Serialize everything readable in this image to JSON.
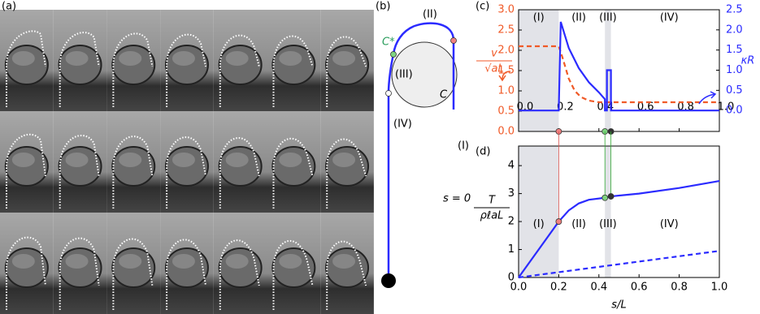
{
  "panel_labels": [
    "(a)",
    "(b)",
    "(c)",
    "(d)"
  ],
  "diagram": {
    "labels": [
      "(II)",
      "C*",
      "(III)",
      "C",
      "(I)",
      "(IV)",
      "s = 0"
    ]
  },
  "chart_data": [
    {
      "type": "line",
      "ylabel": "v",
      "ylabel_denominator": "√aL",
      "y2label": "κR",
      "xlim": [
        0,
        1
      ],
      "xticks": [
        {
          "value": 0,
          "label": "0.0"
        },
        {
          "value": 0.2,
          "label": "0.2"
        },
        {
          "value": 0.4,
          "label": "0.4"
        },
        {
          "value": 0.6,
          "label": "0.6"
        },
        {
          "value": 0.8,
          "label": "0.8"
        },
        {
          "value": 1,
          "label": "1.0"
        }
      ],
      "ylim": [
        0,
        3
      ],
      "yticks": [
        {
          "value": 0,
          "label": "0.0"
        },
        {
          "value": 0.5,
          "label": "0.5"
        },
        {
          "value": 1,
          "label": "1.0"
        },
        {
          "value": 1.5,
          "label": "1.5"
        },
        {
          "value": 2,
          "label": "2.0"
        },
        {
          "value": 2.5,
          "label": "2.5"
        },
        {
          "value": 3,
          "label": "3.0"
        }
      ],
      "y2lim": [
        -0.52,
        2.5
      ],
      "y2ticks": [
        {
          "value": 0,
          "label": "0.0"
        },
        {
          "value": 0.5,
          "label": "0.5"
        },
        {
          "value": 1,
          "label": "1.0"
        },
        {
          "value": 1.5,
          "label": "1.5"
        },
        {
          "value": 2,
          "label": "2.0"
        },
        {
          "value": 2.5,
          "label": "2.5"
        }
      ],
      "shaded": [
        [
          0,
          0.2
        ],
        [
          0.43,
          0.46
        ]
      ],
      "regions": [
        "(I)",
        "(II)",
        "(III)",
        "(IV)"
      ],
      "markers": {
        "x": [
          0.2,
          0.43,
          0.46
        ],
        "values": [
          0,
          0,
          0
        ],
        "colors": [
          "#f08080",
          "#7fd47f",
          "#333333"
        ]
      },
      "series": [
        {
          "color": "#f05a28",
          "dashed": true,
          "x": [
            0,
            0.2,
            0.22,
            0.25,
            0.28,
            0.31,
            0.35,
            0.4,
            1.0
          ],
          "values": [
            2.1,
            2.1,
            1.8,
            1.3,
            1.0,
            0.85,
            0.76,
            0.72,
            0.72
          ]
        },
        {
          "color": "#2b2bff",
          "dashed": false,
          "axis": "y2",
          "x": [
            0,
            0.2,
            0.21,
            0.25,
            0.3,
            0.35,
            0.4,
            0.43,
            0.43,
            0.44,
            0.44,
            0.46,
            0.46,
            1.0
          ],
          "values": [
            0,
            0,
            2.2,
            1.55,
            1.05,
            0.7,
            0.45,
            0.28,
            0,
            0,
            1.0,
            1.0,
            0,
            0
          ]
        }
      ]
    },
    {
      "type": "line",
      "ylabel": "T",
      "ylabel_denominator": "ρℓaL",
      "xlabel": "s/L",
      "xlim": [
        0,
        1
      ],
      "xticks": [
        {
          "value": 0,
          "label": "0.0"
        },
        {
          "value": 0.2,
          "label": "0.2"
        },
        {
          "value": 0.4,
          "label": "0.4"
        },
        {
          "value": 0.6,
          "label": "0.6"
        },
        {
          "value": 0.8,
          "label": "0.8"
        },
        {
          "value": 1,
          "label": "1.0"
        }
      ],
      "ylim": [
        0,
        4.7
      ],
      "yticks": [
        0,
        1,
        2,
        3,
        4
      ],
      "shaded": [
        [
          0,
          0.2
        ],
        [
          0.43,
          0.46
        ]
      ],
      "regions": [
        "(I)",
        "(II)",
        "(III)",
        "(IV)"
      ],
      "markers": {
        "x": [
          0.2,
          0.43,
          0.46
        ],
        "values": [
          2.0,
          2.85,
          2.9
        ],
        "colors": [
          "#f08080",
          "#7fd47f",
          "#333333"
        ]
      },
      "series": [
        {
          "color": "#2b2bff",
          "dashed": false,
          "x": [
            0,
            0.2,
            0.25,
            0.3,
            0.35,
            0.43,
            0.46,
            0.6,
            0.8,
            1.0
          ],
          "values": [
            0,
            2.0,
            2.4,
            2.65,
            2.78,
            2.85,
            2.9,
            3.0,
            3.2,
            3.45
          ]
        },
        {
          "color": "#2b2bff",
          "dashed": true,
          "x": [
            0,
            1
          ],
          "values": [
            0,
            0.95
          ]
        }
      ]
    }
  ]
}
